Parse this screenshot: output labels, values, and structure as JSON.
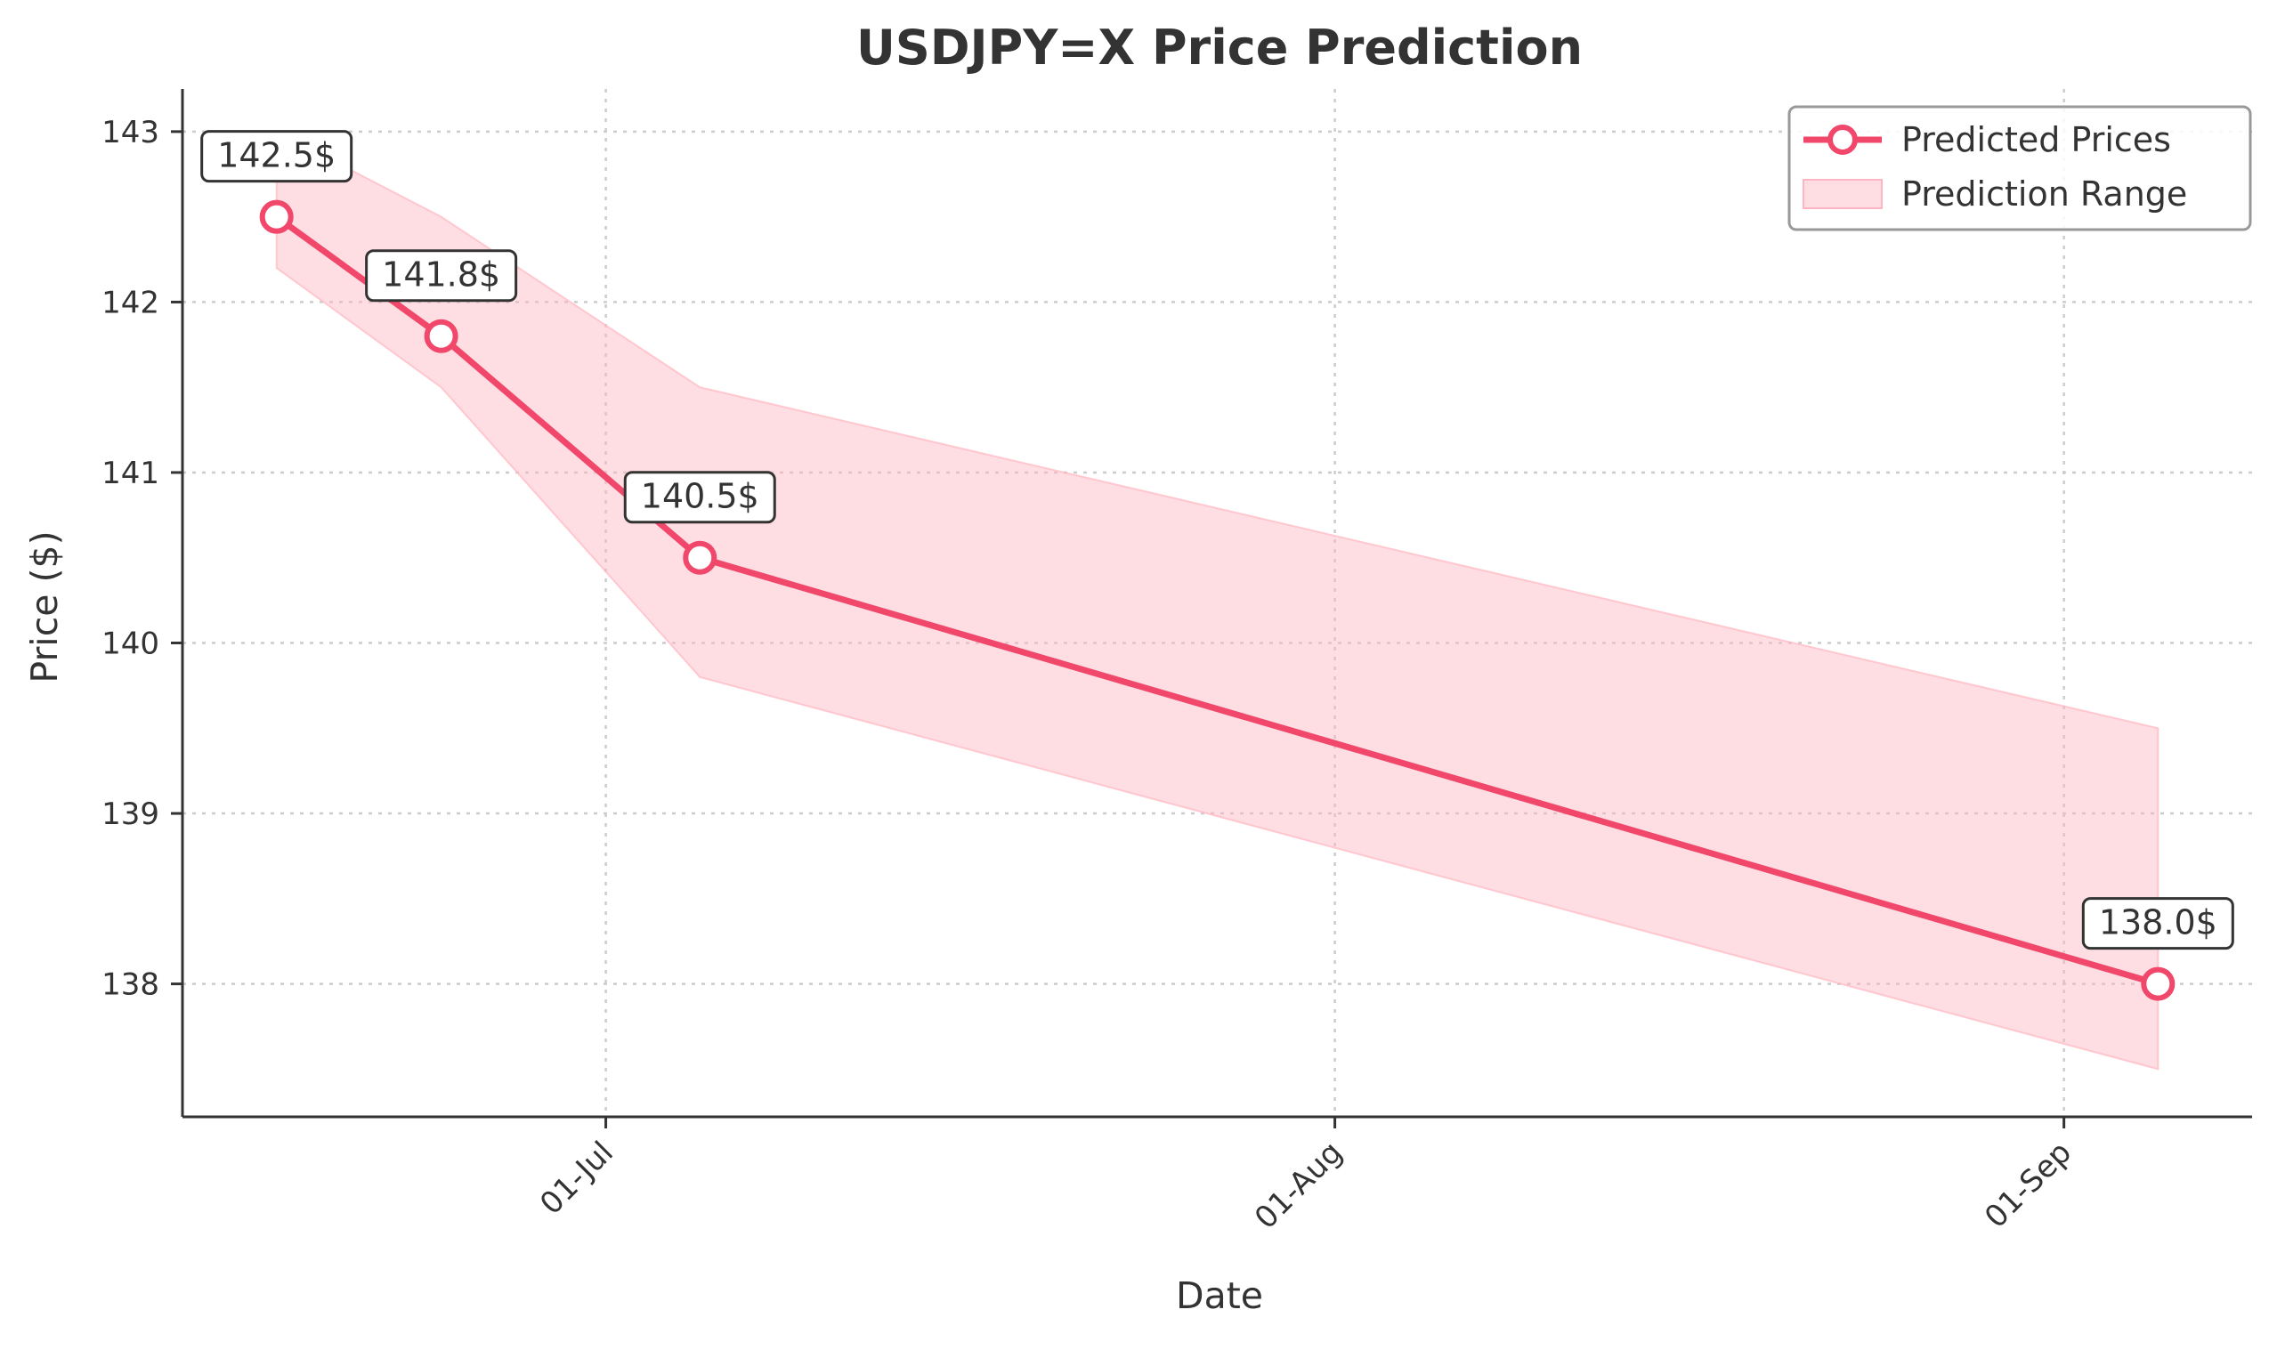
{
  "chart_data": {
    "type": "line",
    "title": "USDJPY=X Price Prediction",
    "xlabel": "Date",
    "ylabel": "Price ($)",
    "x_axis_type": "date",
    "x": [
      "2024-06-17",
      "2024-06-24",
      "2024-07-05",
      "2024-09-05"
    ],
    "xlim": [
      "2024-06-13",
      "2024-09-09"
    ],
    "ylim": [
      137.22,
      143.25
    ],
    "x_ticks": [
      {
        "date": "2024-07-01",
        "label": "01-Jul"
      },
      {
        "date": "2024-08-01",
        "label": "01-Aug"
      },
      {
        "date": "2024-09-01",
        "label": "01-Sep"
      }
    ],
    "y_ticks": [
      138,
      139,
      140,
      141,
      142,
      143
    ],
    "grid": true,
    "legend_position": "top-right",
    "series": [
      {
        "name": "Predicted Prices",
        "kind": "line",
        "values": [
          142.5,
          141.8,
          140.5,
          138.0
        ],
        "labels": [
          "142.5$",
          "141.8$",
          "140.5$",
          "138.0$"
        ]
      },
      {
        "name": "Prediction Range",
        "kind": "band",
        "lower": [
          142.2,
          141.5,
          139.8,
          137.5
        ],
        "upper": [
          143.0,
          142.5,
          141.5,
          139.5
        ]
      }
    ],
    "colors": {
      "line": "#f0476a",
      "band": "#ffb6c1",
      "grid": "#cccccc",
      "text": "#333333"
    }
  }
}
